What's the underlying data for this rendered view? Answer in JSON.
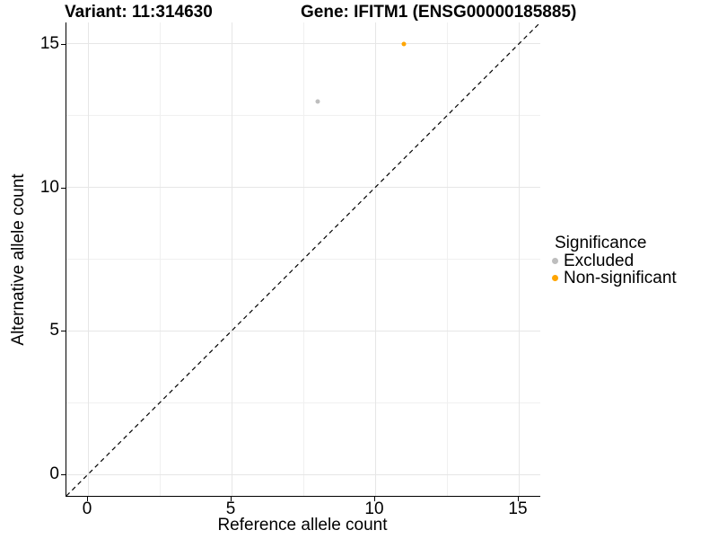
{
  "titles": {
    "variant": "Variant: 11:314630",
    "gene": "Gene: IFITM1 (ENSG00000185885)"
  },
  "chart_data": {
    "type": "scatter",
    "xlabel": "Reference allele count",
    "ylabel": "Alternative allele count",
    "xlim": [
      -0.75,
      15.75
    ],
    "ylim": [
      -0.75,
      15.75
    ],
    "x_ticks": [
      0,
      5,
      10,
      15
    ],
    "y_ticks": [
      0,
      5,
      10,
      15
    ],
    "x_minor_ticks": [
      2.5,
      7.5,
      12.5
    ],
    "y_minor_ticks": [
      2.5,
      7.5,
      12.5
    ],
    "grid": true,
    "identity_line": {
      "style": "dashed",
      "color": "#000000",
      "from": [
        -0.75,
        -0.75
      ],
      "to": [
        15.75,
        15.75
      ]
    },
    "series": [
      {
        "name": "Excluded",
        "color": "#BEBEBE",
        "points": [
          [
            8,
            13
          ]
        ]
      },
      {
        "name": "Non-significant",
        "color": "#FFA500",
        "points": [
          [
            11,
            15
          ]
        ]
      }
    ],
    "legend": {
      "title": "Significance",
      "position": "right",
      "items": [
        {
          "label": "Excluded",
          "color": "#BEBEBE"
        },
        {
          "label": "Non-significant",
          "color": "#FFA500"
        }
      ]
    }
  }
}
